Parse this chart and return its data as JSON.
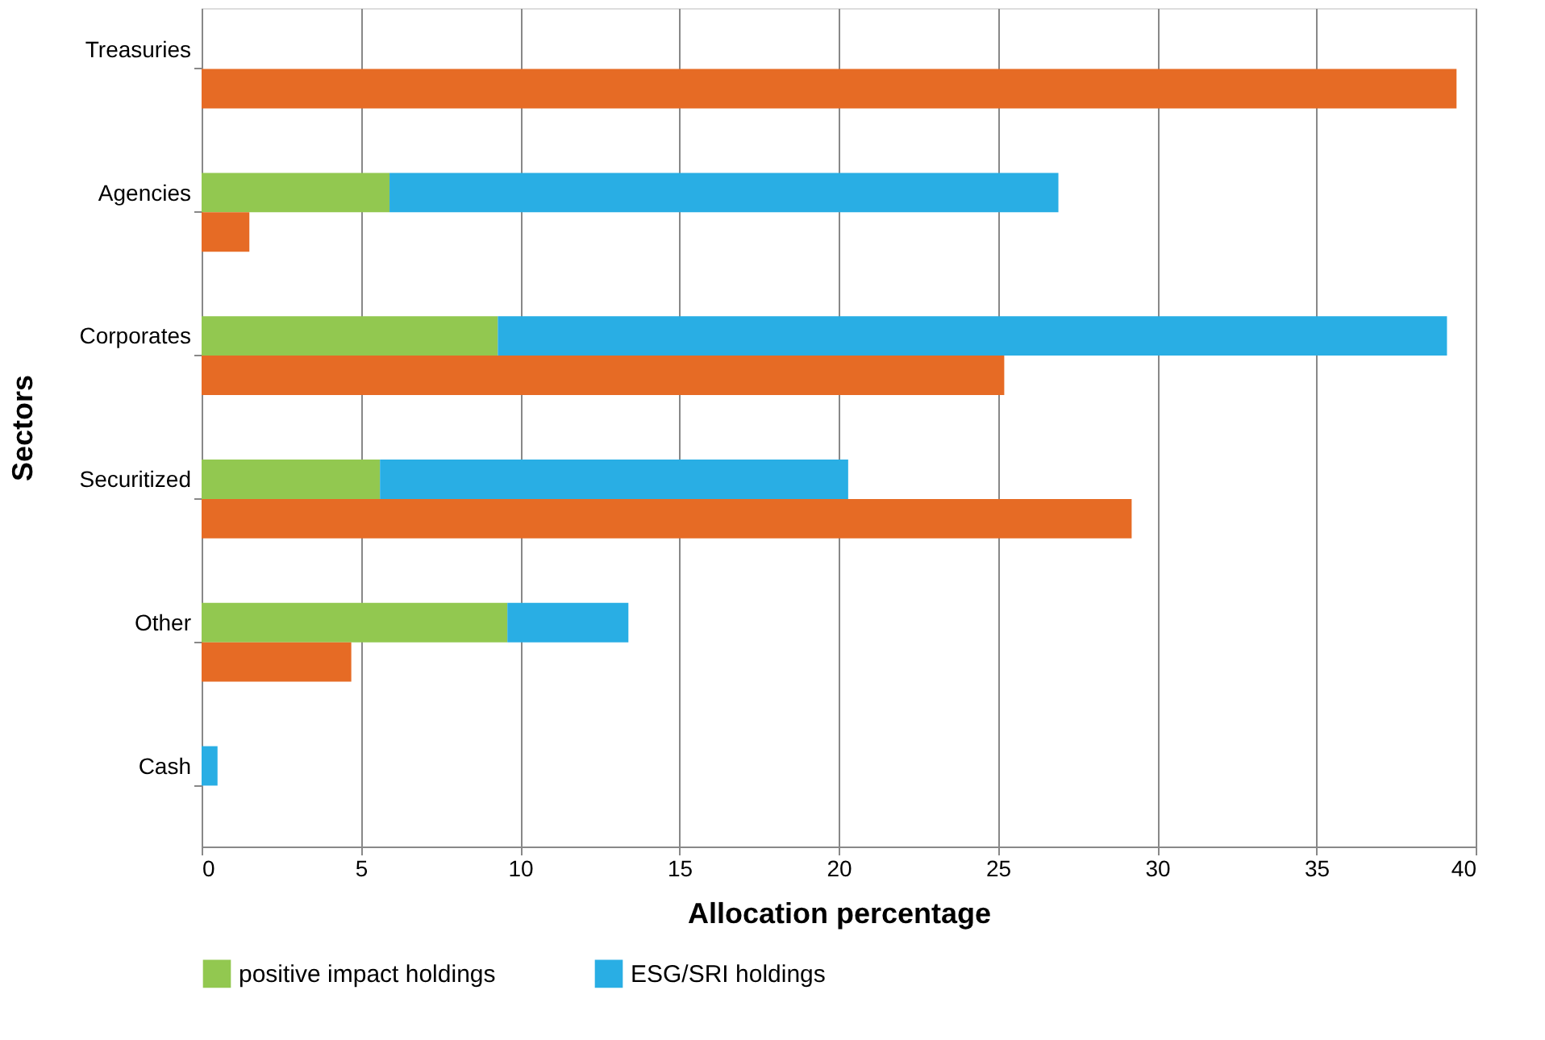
{
  "chart_data": {
    "type": "bar",
    "orientation": "horizontal",
    "stacked": true,
    "xlabel": "Allocation percentage",
    "ylabel": "Sectors",
    "categories": [
      "Treasuries",
      null,
      "Agencies",
      null,
      "Corporates",
      null,
      "Securitized",
      null,
      "Other",
      null,
      "Cash",
      null
    ],
    "series": [
      {
        "name": "positive impact holdings",
        "color": "#92c850",
        "values": [
          0,
          null,
          5.9,
          null,
          9.3,
          null,
          5.6,
          null,
          9.6,
          null,
          0,
          null
        ]
      },
      {
        "name": "ESG/SRI holdings",
        "color": "#29aee4",
        "values": [
          0,
          null,
          21.0,
          null,
          29.8,
          null,
          14.7,
          null,
          3.8,
          null,
          0.5,
          null
        ]
      },
      {
        "color": "#e66b25",
        "values": [
          null,
          39.4,
          null,
          1.5,
          null,
          25.2,
          null,
          29.2,
          null,
          4.7,
          null,
          0
        ]
      }
    ],
    "xlim": [
      0,
      40
    ],
    "xticks": [
      0,
      5,
      10,
      15,
      20,
      25,
      30,
      35,
      40
    ],
    "grid": "x",
    "legend": "bottom"
  }
}
